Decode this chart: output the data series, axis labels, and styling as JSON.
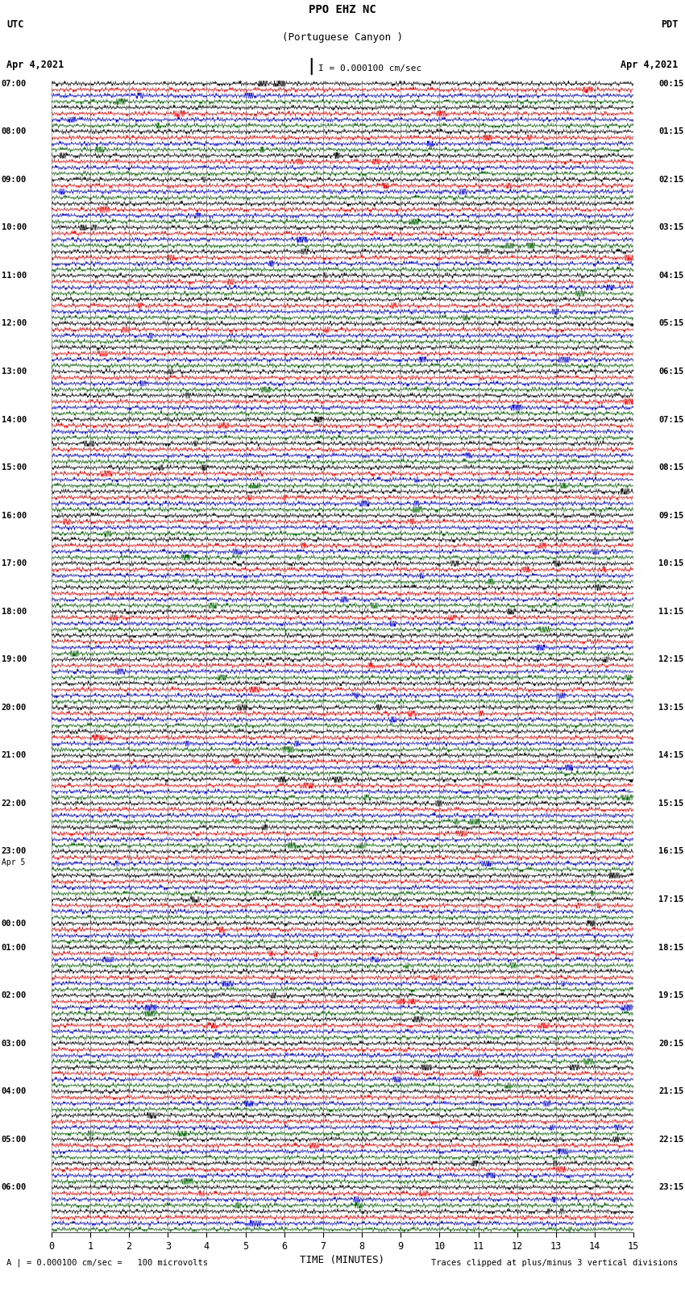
{
  "title_line1": "PPO EHZ NC",
  "title_line2": "(Portuguese Canyon )",
  "scale_label": "I = 0.000100 cm/sec",
  "utc_label": "UTC",
  "pdt_label": "PDT",
  "date_left": "Apr 4,2021",
  "date_right": "Apr 4,2021",
  "footer_left": "A | = 0.000100 cm/sec =   100 microvolts",
  "footer_right": "Traces clipped at plus/minus 3 vertical divisions",
  "xlabel": "TIME (MINUTES)",
  "xmin": 0,
  "xmax": 15,
  "xticks": [
    0,
    1,
    2,
    3,
    4,
    5,
    6,
    7,
    8,
    9,
    10,
    11,
    12,
    13,
    14,
    15
  ],
  "bg_color": "#ffffff",
  "trace_colors": [
    "#000000",
    "#ff0000",
    "#0000dd",
    "#006400"
  ],
  "num_rows": 48,
  "utc_times": [
    "07:00",
    "",
    "08:00",
    "",
    "09:00",
    "",
    "10:00",
    "",
    "11:00",
    "",
    "12:00",
    "",
    "13:00",
    "",
    "14:00",
    "",
    "15:00",
    "",
    "16:00",
    "",
    "17:00",
    "",
    "18:00",
    "",
    "19:00",
    "",
    "20:00",
    "",
    "21:00",
    "",
    "22:00",
    "",
    "23:00",
    "",
    "",
    "00:00",
    "01:00",
    "",
    "02:00",
    "",
    "03:00",
    "",
    "04:00",
    "",
    "05:00",
    "",
    "06:00",
    ""
  ],
  "apr5_row": 33,
  "pdt_times": [
    "00:15",
    "",
    "01:15",
    "",
    "02:15",
    "",
    "03:15",
    "",
    "04:15",
    "",
    "05:15",
    "",
    "06:15",
    "",
    "07:15",
    "",
    "08:15",
    "",
    "09:15",
    "",
    "10:15",
    "",
    "11:15",
    "",
    "12:15",
    "",
    "13:15",
    "",
    "14:15",
    "",
    "15:15",
    "",
    "16:15",
    "",
    "17:15",
    "",
    "18:15",
    "",
    "19:15",
    "",
    "20:15",
    "",
    "21:15",
    "",
    "22:15",
    "",
    "23:15",
    ""
  ],
  "seed": 12345
}
